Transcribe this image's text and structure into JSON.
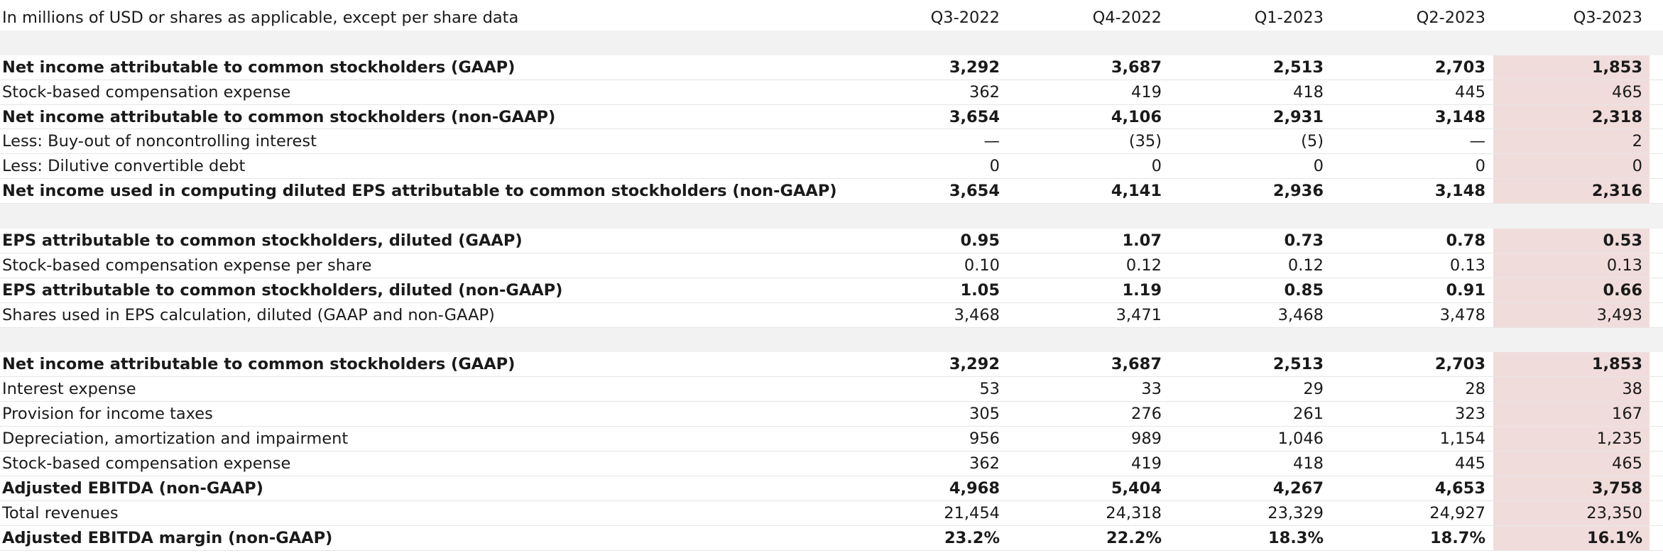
{
  "header": {
    "label": "In millions of USD or shares as applicable, except per share data",
    "periods": [
      "Q3-2022",
      "Q4-2022",
      "Q1-2023",
      "Q2-2023",
      "Q3-2023"
    ]
  },
  "colors": {
    "highlight_column": "#f1dcdc",
    "spacer_band": "#f2f2f2"
  },
  "sections": [
    {
      "rows": [
        {
          "label": "Net income attributable to common stockholders (GAAP)",
          "bold": true,
          "values": [
            "3,292",
            "3,687",
            "2,513",
            "2,703",
            "1,853"
          ]
        },
        {
          "label": "Stock-based compensation expense",
          "bold": false,
          "values": [
            "362",
            "419",
            "418",
            "445",
            "465"
          ]
        },
        {
          "label": "Net income attributable to common stockholders (non-GAAP)",
          "bold": true,
          "values": [
            "3,654",
            "4,106",
            "2,931",
            "3,148",
            "2,318"
          ]
        },
        {
          "label": "Less: Buy-out of noncontrolling interest",
          "bold": false,
          "values": [
            "—",
            "(35)",
            "(5)",
            "—",
            "2"
          ]
        },
        {
          "label": "Less: Dilutive convertible debt",
          "bold": false,
          "values": [
            "0",
            "0",
            "0",
            "0",
            "0"
          ]
        },
        {
          "label": "Net income used in computing diluted EPS attributable to common stockholders (non-GAAP)",
          "bold": true,
          "values": [
            "3,654",
            "4,141",
            "2,936",
            "3,148",
            "2,316"
          ]
        }
      ]
    },
    {
      "rows": [
        {
          "label": "EPS attributable to common stockholders, diluted (GAAP)",
          "bold": true,
          "values": [
            "0.95",
            "1.07",
            "0.73",
            "0.78",
            "0.53"
          ]
        },
        {
          "label": "Stock-based compensation expense per share",
          "bold": false,
          "values": [
            "0.10",
            "0.12",
            "0.12",
            "0.13",
            "0.13"
          ]
        },
        {
          "label": "EPS attributable to common stockholders, diluted (non-GAAP)",
          "bold": true,
          "values": [
            "1.05",
            "1.19",
            "0.85",
            "0.91",
            "0.66"
          ]
        },
        {
          "label": "Shares used in EPS calculation, diluted (GAAP and non-GAAP)",
          "bold": false,
          "values": [
            "3,468",
            "3,471",
            "3,468",
            "3,478",
            "3,493"
          ]
        }
      ]
    },
    {
      "rows": [
        {
          "label": "Net income attributable to common stockholders (GAAP)",
          "bold": true,
          "values": [
            "3,292",
            "3,687",
            "2,513",
            "2,703",
            "1,853"
          ]
        },
        {
          "label": "Interest expense",
          "bold": false,
          "values": [
            "53",
            "33",
            "29",
            "28",
            "38"
          ]
        },
        {
          "label": "Provision for income taxes",
          "bold": false,
          "values": [
            "305",
            "276",
            "261",
            "323",
            "167"
          ]
        },
        {
          "label": "Depreciation, amortization and impairment",
          "bold": false,
          "values": [
            "956",
            "989",
            "1,046",
            "1,154",
            "1,235"
          ]
        },
        {
          "label": "Stock-based compensation expense",
          "bold": false,
          "values": [
            "362",
            "419",
            "418",
            "445",
            "465"
          ]
        },
        {
          "label": "Adjusted EBITDA (non-GAAP)",
          "bold": true,
          "values": [
            "4,968",
            "5,404",
            "4,267",
            "4,653",
            "3,758"
          ]
        },
        {
          "label": "Total revenues",
          "bold": false,
          "values": [
            "21,454",
            "24,318",
            "23,329",
            "24,927",
            "23,350"
          ]
        },
        {
          "label": "Adjusted EBITDA margin (non-GAAP)",
          "bold": true,
          "values": [
            "23.2%",
            "22.2%",
            "18.3%",
            "18.7%",
            "16.1%"
          ]
        }
      ]
    }
  ]
}
